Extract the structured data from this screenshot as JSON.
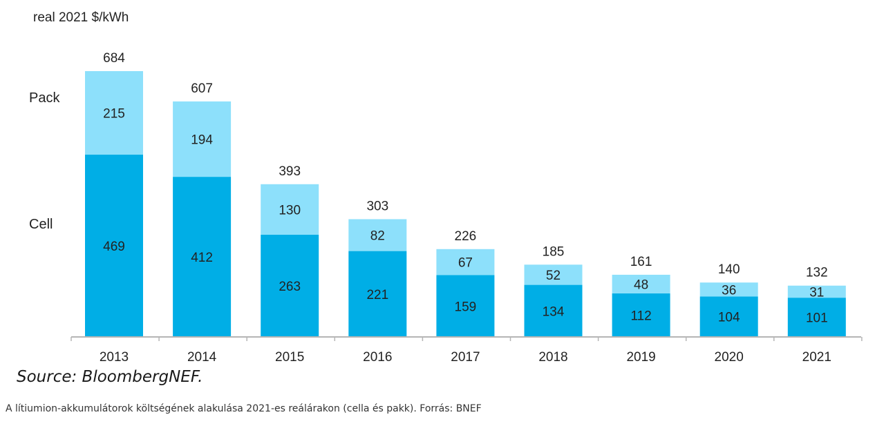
{
  "chart_data": {
    "type": "bar",
    "stacked": true,
    "ylabel": "real 2021 $/kWh",
    "categories": [
      "2013",
      "2014",
      "2015",
      "2016",
      "2017",
      "2018",
      "2019",
      "2020",
      "2021"
    ],
    "series": [
      {
        "name": "Cell",
        "color": "#00aee6",
        "values": [
          469,
          412,
          263,
          221,
          159,
          134,
          112,
          104,
          101
        ]
      },
      {
        "name": "Pack",
        "color": "#8de0fb",
        "values": [
          215,
          194,
          130,
          82,
          67,
          52,
          48,
          36,
          31
        ]
      }
    ],
    "totals": [
      684,
      607,
      393,
      303,
      226,
      185,
      161,
      140,
      132
    ],
    "ylim": [
      0,
      760
    ],
    "grid": false,
    "legend": "left"
  },
  "source": "Source: BloombergNEF.",
  "caption": "A lítiumion-akkumulátorok költségének alakulása 2021-es reálárakon (cella és pakk). Forrás: BNEF"
}
